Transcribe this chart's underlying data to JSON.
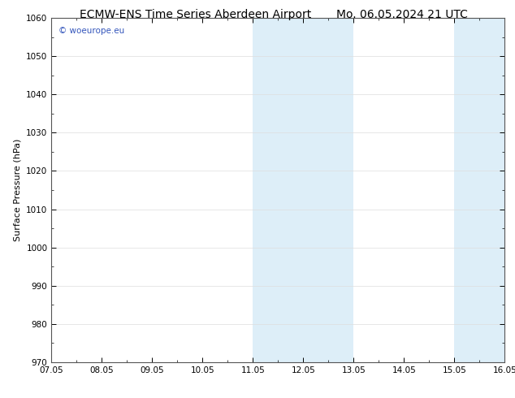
{
  "title_left": "ECMW-ENS Time Series Aberdeen Airport",
  "title_right": "Mo. 06.05.2024 21 UTC",
  "ylabel": "Surface Pressure (hPa)",
  "xtick_labels": [
    "07.05",
    "08.05",
    "09.05",
    "10.05",
    "11.05",
    "12.05",
    "13.05",
    "14.05",
    "15.05",
    "16.05"
  ],
  "xtick_positions": [
    0,
    1,
    2,
    3,
    4,
    5,
    6,
    7,
    8,
    9
  ],
  "ylim": [
    970,
    1060
  ],
  "ytick_positions": [
    970,
    980,
    990,
    1000,
    1010,
    1020,
    1030,
    1040,
    1050,
    1060
  ],
  "shaded_bands": [
    {
      "x_start": 4,
      "x_end": 6
    },
    {
      "x_start": 8,
      "x_end": 9
    }
  ],
  "shaded_color": "#ddeef8",
  "background_color": "#ffffff",
  "plot_bg_color": "#ffffff",
  "border_color": "#555555",
  "watermark_text": "© woeurope.eu",
  "watermark_color": "#3355bb",
  "title_fontsize": 10,
  "axis_label_fontsize": 8,
  "tick_fontsize": 7.5,
  "grid_color": "#dddddd"
}
